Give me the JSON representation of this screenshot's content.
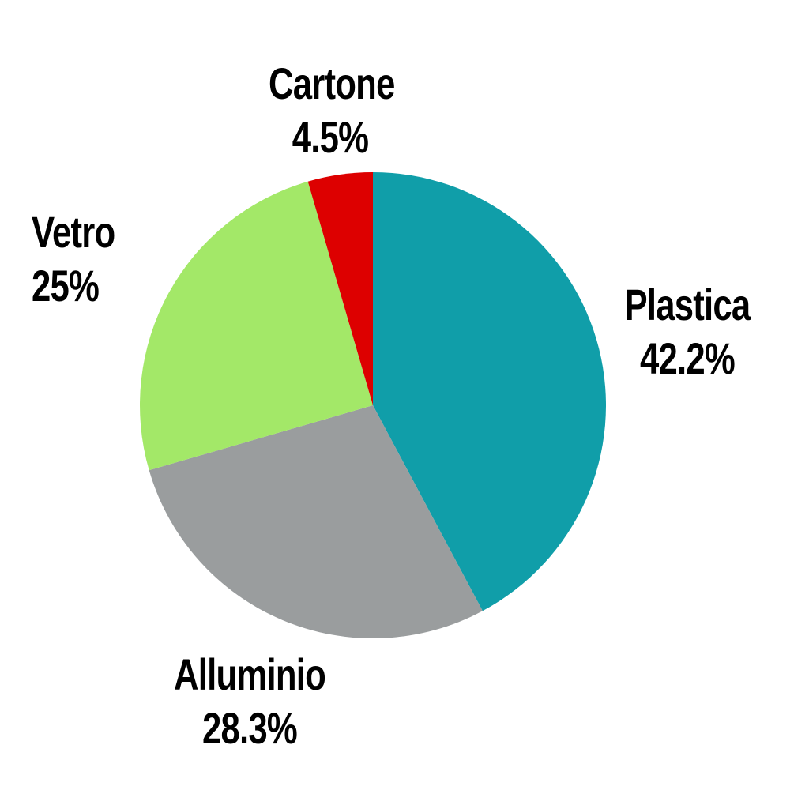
{
  "chart_data": {
    "type": "pie",
    "start_angle": "top",
    "direction": "clockwise",
    "slices": [
      {
        "label": "Plastica",
        "value": 42.2,
        "value_label": "42.2%",
        "color": "#109ea9"
      },
      {
        "label": "Alluminio",
        "value": 28.3,
        "value_label": "28.3%",
        "color": "#9a9d9e"
      },
      {
        "label": "Vetro",
        "value": 25,
        "value_label": "25%",
        "color": "#a3e868"
      },
      {
        "label": "Cartone",
        "value": 4.5,
        "value_label": "4.5%",
        "color": "#dd0000"
      }
    ]
  }
}
